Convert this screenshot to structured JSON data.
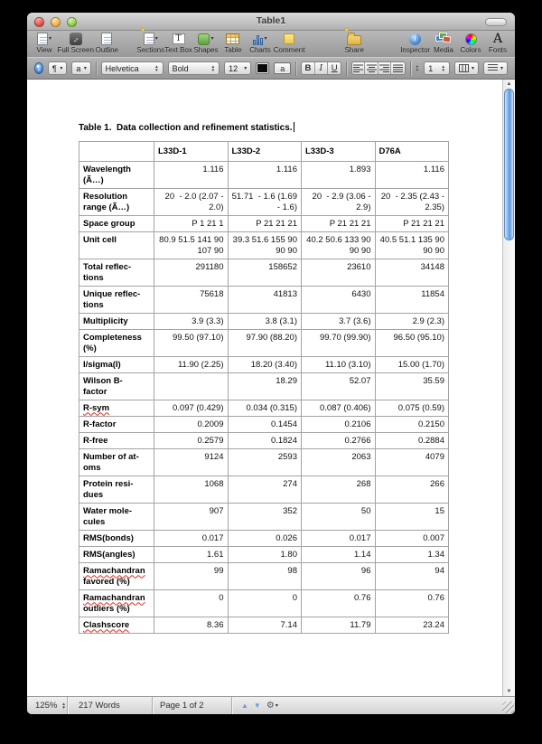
{
  "window": {
    "title": "Table1"
  },
  "toolbar": {
    "items": [
      {
        "label": "View",
        "dropdown": true
      },
      {
        "label": "Full Screen",
        "dropdown": false
      },
      {
        "label": "Outline",
        "dropdown": false
      },
      {
        "label": "Sections",
        "dropdown": true
      },
      {
        "label": "Text Box",
        "dropdown": false
      },
      {
        "label": "Shapes",
        "dropdown": true
      },
      {
        "label": "Table",
        "dropdown": false
      },
      {
        "label": "Charts",
        "dropdown": true
      },
      {
        "label": "Comment",
        "dropdown": false
      },
      {
        "label": "Share",
        "dropdown": false
      },
      {
        "label": "Inspector",
        "dropdown": false
      },
      {
        "label": "Media",
        "dropdown": false
      },
      {
        "label": "Colors",
        "dropdown": false
      },
      {
        "label": "Fonts",
        "dropdown": false
      }
    ]
  },
  "format_bar": {
    "font": "Helvetica",
    "typeface": "Bold",
    "size": "12",
    "bold_label": "B",
    "italic_label": "I",
    "underline_label": "U",
    "line_spacing": "1"
  },
  "icons": {
    "dropdown_arrow": "▾",
    "pilcrow": "¶",
    "lowercase_a": "a",
    "fullscreen_arrows": "↔",
    "letter_T": "T",
    "letter_A": "A",
    "info_i": "i",
    "sparkle": "✦",
    "line_spacing_arrows": "↕",
    "scroll_up": "▲",
    "scroll_down": "▼",
    "nav_up": "▲",
    "nav_down": "▼",
    "gear": "⚙"
  },
  "document": {
    "caption": "Table 1.  Data collection and refinement statistics."
  },
  "table": {
    "columns": [
      "",
      "L33D-1",
      "L33D-2",
      "L33D-3",
      "D76A"
    ],
    "misspelled_words": [
      "R-sym",
      "Ramachandran",
      "Clashscore"
    ],
    "rows": [
      {
        "label": "Wavelength\n(Ã…)",
        "values": [
          "1.116",
          "1.116",
          "1.893",
          "1.116"
        ]
      },
      {
        "label": "Resolution\nrange (Ã…)",
        "values": [
          "20  - 2.0 (2.07 - 2.0)",
          "51.71  - 1.6 (1.69 - 1.6)",
          "20  - 2.9 (3.06 - 2.9)",
          "20  - 2.35 (2.43 - 2.35)"
        ]
      },
      {
        "label": "Space group",
        "values": [
          "P 1 21 1",
          "P 21 21 21",
          "P 21 21 21",
          "P 21 21 21"
        ]
      },
      {
        "label": "Unit cell",
        "values": [
          "80.9 51.5 141 90 107 90",
          "39.3 51.6 155 90 90 90",
          "40.2 50.6 133 90 90 90",
          "40.5 51.1 135 90 90 90"
        ]
      },
      {
        "label": "Total reflec-\ntions",
        "values": [
          "291180",
          "158652",
          "23610",
          "34148"
        ]
      },
      {
        "label": "Unique reflec-\ntions",
        "values": [
          "75618",
          "41813",
          "6430",
          "11854"
        ]
      },
      {
        "label": "Multiplicity",
        "values": [
          "3.9 (3.3)",
          "3.8 (3.1)",
          "3.7 (3.6)",
          "2.9 (2.3)"
        ]
      },
      {
        "label": "Completeness\n(%)",
        "values": [
          "99.50 (97.10)",
          "97.90 (88.20)",
          "99.70 (99.90)",
          "96.50 (95.10)"
        ]
      },
      {
        "label": "I/sigma(I)",
        "values": [
          "11.90 (2.25)",
          "18.20 (3.40)",
          "11.10 (3.10)",
          "15.00 (1.70)"
        ]
      },
      {
        "label": "Wilson B-\nfactor",
        "values": [
          "",
          "18.29",
          "52.07",
          "35.59"
        ]
      },
      {
        "label": "R-sym",
        "values": [
          "0.097 (0.429)",
          "0.034 (0.315)",
          "0.087 (0.406)",
          "0.075 (0.59)"
        ]
      },
      {
        "label": "R-factor",
        "values": [
          "0.2009",
          "0.1454",
          "0.2106",
          "0.2150"
        ]
      },
      {
        "label": "R-free",
        "values": [
          "0.2579",
          "0.1824",
          "0.2766",
          "0.2884"
        ]
      },
      {
        "label": "Number of at-\noms",
        "values": [
          "9124",
          "2593",
          "2063",
          "4079"
        ]
      },
      {
        "label": "Protein resi-\ndues",
        "values": [
          "1068",
          "274",
          "268",
          "266"
        ]
      },
      {
        "label": "Water mole-\ncules",
        "values": [
          "907",
          "352",
          "50",
          "15"
        ]
      },
      {
        "label": "RMS(bonds)",
        "values": [
          "0.017",
          "0.026",
          "0.017",
          "0.007"
        ]
      },
      {
        "label": "RMS(angles)",
        "values": [
          "1.61",
          "1.80",
          "1.14",
          "1.34"
        ]
      },
      {
        "label": "Ramachandran\nfavored (%)",
        "values": [
          "99",
          "98",
          "96",
          "94"
        ]
      },
      {
        "label": "Ramachandran\noutliers (%)",
        "values": [
          "0",
          "0",
          "0.76",
          "0.76"
        ]
      },
      {
        "label": "Clashscore",
        "values": [
          "8.36",
          "7.14",
          "11.79",
          "23.24"
        ]
      }
    ]
  },
  "status_bar": {
    "zoom": "125%",
    "words": "217 Words",
    "page": "Page 1 of 2"
  }
}
